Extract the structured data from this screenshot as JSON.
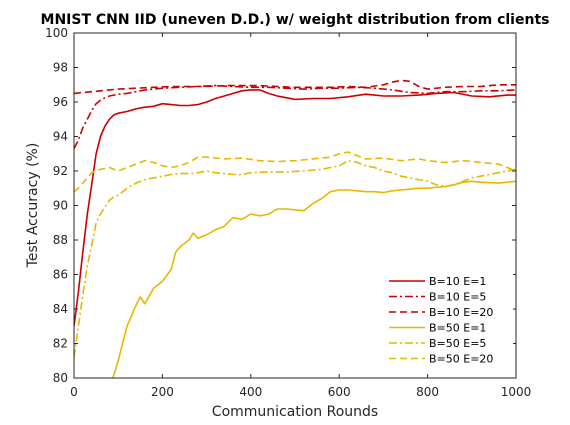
{
  "chart_data": {
    "type": "line",
    "title": "MNIST CNN IID (uneven D.D.) w/ weight distribution from clients",
    "xlabel": "Communication Rounds",
    "ylabel": "Test Accuracy (%)",
    "xlim": [
      0,
      1000
    ],
    "ylim": [
      80,
      100
    ],
    "xticks": [
      0,
      200,
      400,
      600,
      800,
      1000
    ],
    "yticks": [
      80,
      82,
      84,
      86,
      88,
      90,
      92,
      94,
      96,
      98,
      100
    ],
    "grid": false,
    "legend_position": "bottom-right",
    "series": [
      {
        "name": "B=10 E=1",
        "color": "#cc0000",
        "dash": "solid",
        "x": [
          0,
          10,
          20,
          30,
          40,
          50,
          60,
          70,
          80,
          90,
          100,
          120,
          140,
          160,
          180,
          200,
          220,
          240,
          260,
          280,
          300,
          320,
          340,
          360,
          380,
          400,
          420,
          440,
          460,
          480,
          500,
          540,
          580,
          620,
          660,
          700,
          740,
          780,
          820,
          860,
          900,
          940,
          980,
          1000
        ],
        "y": [
          83.0,
          85.0,
          87.3,
          89.5,
          91.2,
          93.0,
          94.0,
          94.6,
          95.0,
          95.25,
          95.35,
          95.45,
          95.6,
          95.7,
          95.75,
          95.9,
          95.85,
          95.8,
          95.8,
          95.85,
          96.0,
          96.2,
          96.35,
          96.5,
          96.65,
          96.7,
          96.7,
          96.5,
          96.35,
          96.25,
          96.15,
          96.2,
          96.2,
          96.3,
          96.45,
          96.35,
          96.35,
          96.4,
          96.5,
          96.55,
          96.35,
          96.3,
          96.4,
          96.4
        ]
      },
      {
        "name": "B=10 E=5",
        "color": "#cc0000",
        "dash": "dashdot",
        "x": [
          0,
          10,
          20,
          30,
          40,
          50,
          60,
          70,
          80,
          90,
          100,
          120,
          140,
          160,
          180,
          200,
          240,
          280,
          320,
          360,
          400,
          440,
          480,
          520,
          560,
          600,
          640,
          680,
          720,
          760,
          800,
          840,
          880,
          920,
          960,
          1000
        ],
        "y": [
          93.3,
          93.8,
          94.5,
          95.0,
          95.5,
          95.9,
          96.1,
          96.25,
          96.35,
          96.4,
          96.45,
          96.5,
          96.6,
          96.7,
          96.75,
          96.8,
          96.85,
          96.9,
          96.95,
          96.9,
          96.85,
          96.85,
          96.8,
          96.75,
          96.8,
          96.8,
          96.85,
          96.8,
          96.7,
          96.55,
          96.5,
          96.6,
          96.6,
          96.65,
          96.65,
          96.7
        ]
      },
      {
        "name": "B=10 E=20",
        "color": "#cc0000",
        "dash": "dashed",
        "x": [
          0,
          20,
          40,
          60,
          80,
          100,
          140,
          180,
          220,
          260,
          300,
          340,
          380,
          420,
          460,
          500,
          540,
          580,
          620,
          660,
          700,
          720,
          740,
          760,
          780,
          800,
          840,
          880,
          920,
          960,
          1000
        ],
        "y": [
          96.5,
          96.55,
          96.6,
          96.65,
          96.7,
          96.75,
          96.8,
          96.85,
          96.9,
          96.9,
          96.9,
          96.95,
          96.95,
          96.95,
          96.9,
          96.85,
          96.85,
          96.85,
          96.9,
          96.85,
          97.0,
          97.15,
          97.25,
          97.2,
          96.9,
          96.75,
          96.85,
          96.9,
          96.9,
          97.0,
          97.0
        ]
      },
      {
        "name": "B=50 E=1",
        "color": "#e6b800",
        "dash": "solid",
        "x": [
          88,
          100,
          110,
          120,
          130,
          140,
          150,
          160,
          180,
          200,
          220,
          230,
          240,
          260,
          270,
          280,
          290,
          300,
          320,
          340,
          360,
          380,
          400,
          420,
          440,
          460,
          480,
          500,
          520,
          540,
          560,
          580,
          600,
          620,
          640,
          660,
          680,
          700,
          720,
          740,
          760,
          780,
          800,
          840,
          860,
          880,
          900,
          920,
          960,
          1000
        ],
        "y": [
          80.0,
          81.0,
          82.0,
          83.0,
          83.6,
          84.2,
          84.7,
          84.3,
          85.2,
          85.6,
          86.3,
          87.3,
          87.6,
          88.0,
          88.4,
          88.1,
          88.2,
          88.3,
          88.6,
          88.8,
          89.3,
          89.2,
          89.5,
          89.4,
          89.5,
          89.8,
          89.8,
          89.75,
          89.7,
          90.1,
          90.4,
          90.8,
          90.9,
          90.9,
          90.85,
          90.8,
          90.8,
          90.75,
          90.85,
          90.9,
          90.95,
          91.0,
          91.0,
          91.1,
          91.2,
          91.35,
          91.4,
          91.35,
          91.3,
          91.4
        ]
      },
      {
        "name": "B=50 E=5",
        "color": "#e6b800",
        "dash": "dashdot",
        "x": [
          0,
          10,
          20,
          30,
          40,
          50,
          60,
          70,
          80,
          90,
          100,
          120,
          140,
          160,
          180,
          200,
          220,
          240,
          260,
          280,
          300,
          320,
          340,
          360,
          380,
          400,
          440,
          480,
          520,
          560,
          600,
          620,
          640,
          660,
          680,
          700,
          720,
          740,
          760,
          780,
          800,
          820,
          840,
          860,
          880,
          900,
          920,
          940,
          960,
          980,
          1000
        ],
        "y": [
          81.2,
          83.0,
          84.8,
          86.5,
          87.7,
          89.0,
          89.5,
          89.9,
          90.3,
          90.5,
          90.6,
          91.0,
          91.3,
          91.5,
          91.6,
          91.7,
          91.8,
          91.85,
          91.85,
          91.9,
          92.0,
          91.9,
          91.85,
          91.8,
          91.8,
          91.9,
          91.95,
          91.95,
          92.0,
          92.1,
          92.3,
          92.6,
          92.5,
          92.3,
          92.2,
          92.0,
          91.9,
          91.7,
          91.6,
          91.5,
          91.4,
          91.2,
          91.1,
          91.2,
          91.4,
          91.6,
          91.7,
          91.8,
          91.9,
          92.0,
          92.1
        ]
      },
      {
        "name": "B=50 E=20",
        "color": "#e6b800",
        "dash": "dashed",
        "x": [
          0,
          10,
          20,
          30,
          40,
          60,
          80,
          100,
          120,
          140,
          160,
          180,
          200,
          220,
          240,
          260,
          280,
          300,
          340,
          380,
          420,
          460,
          500,
          540,
          580,
          600,
          620,
          640,
          660,
          700,
          740,
          780,
          800,
          840,
          880,
          920,
          960,
          1000
        ],
        "y": [
          90.8,
          91.0,
          91.3,
          91.6,
          91.9,
          92.1,
          92.2,
          92.0,
          92.2,
          92.4,
          92.6,
          92.5,
          92.3,
          92.2,
          92.3,
          92.5,
          92.8,
          92.8,
          92.7,
          92.75,
          92.6,
          92.55,
          92.6,
          92.7,
          92.8,
          93.0,
          93.1,
          92.9,
          92.7,
          92.75,
          92.6,
          92.7,
          92.6,
          92.5,
          92.6,
          92.5,
          92.4,
          92.0
        ]
      }
    ]
  }
}
